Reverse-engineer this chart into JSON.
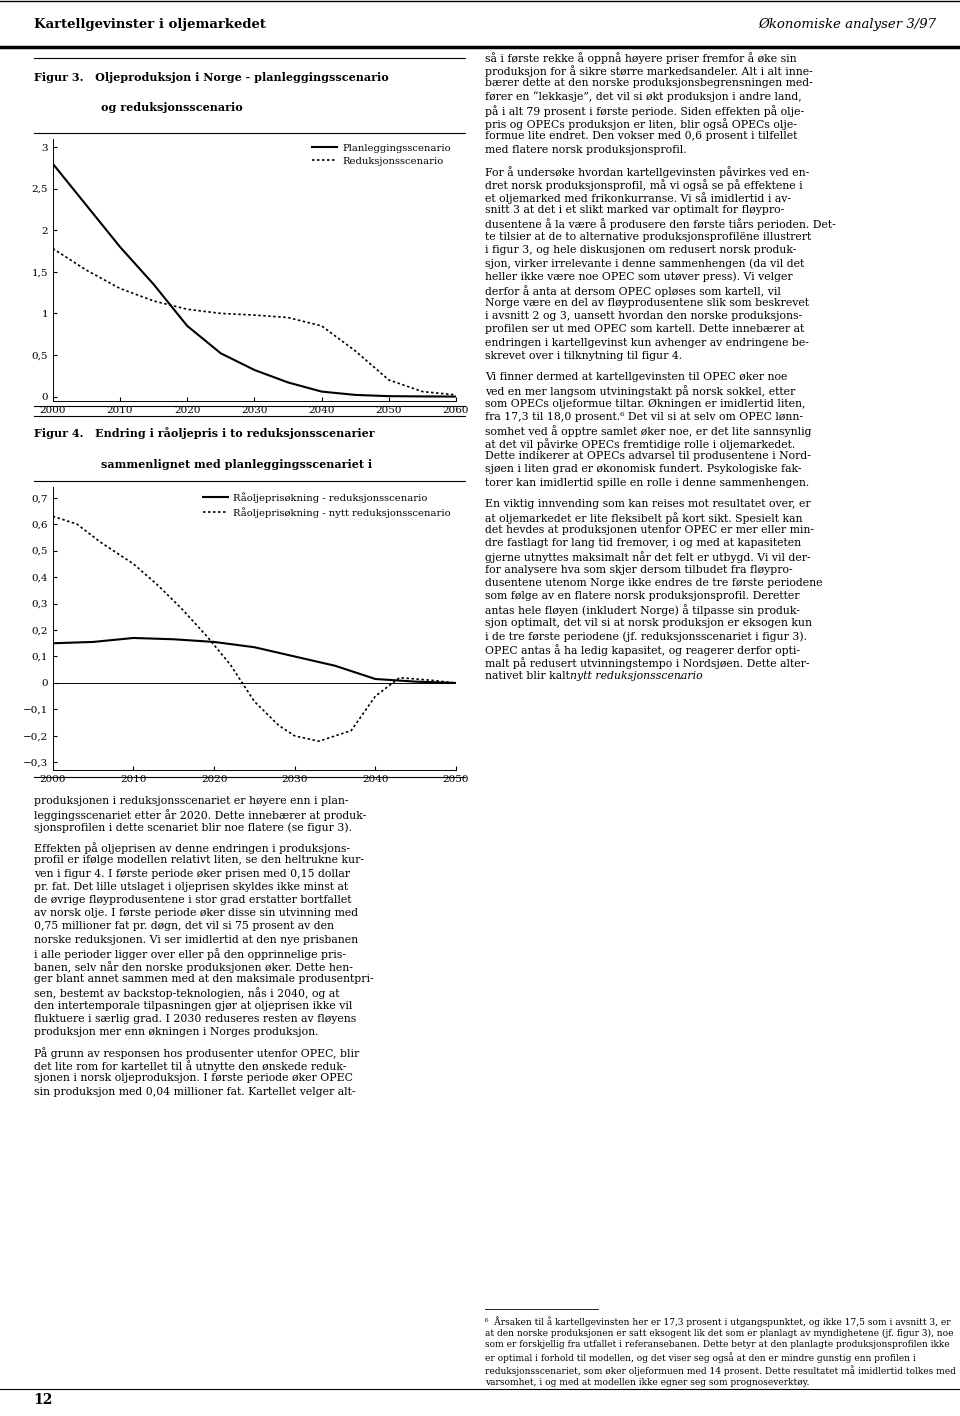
{
  "page_title_left": "Kartellgevinster i oljemarkedet",
  "page_title_right": "Økonomiske analyser 3/97",
  "page_number": "12",
  "fig3_title_line1": "Figur 3.   Oljeproduksjon i Norge - planleggingsscenario",
  "fig3_title_line2": "og reduksjonsscenario",
  "fig3_xlim": [
    2000,
    2060
  ],
  "fig3_ylim": [
    -0.05,
    3.1
  ],
  "fig3_xticks": [
    2000,
    2010,
    2020,
    2030,
    2040,
    2050,
    2060
  ],
  "fig3_yticks": [
    0,
    0.5,
    1,
    1.5,
    2,
    2.5,
    3
  ],
  "fig3_line1_label": "Planleggingsscenario",
  "fig3_line1_color": "#000000",
  "fig3_line1_x": [
    2000,
    2005,
    2010,
    2015,
    2020,
    2025,
    2030,
    2035,
    2040,
    2045,
    2050,
    2055,
    2060
  ],
  "fig3_line1_y": [
    2.8,
    2.3,
    1.8,
    1.35,
    0.85,
    0.52,
    0.32,
    0.17,
    0.06,
    0.02,
    0.005,
    0.002,
    0.0
  ],
  "fig3_line2_label": "Reduksjonsscenario",
  "fig3_line2_color": "#000000",
  "fig3_line2_x": [
    2000,
    2005,
    2010,
    2015,
    2020,
    2025,
    2030,
    2035,
    2040,
    2045,
    2050,
    2055,
    2060
  ],
  "fig3_line2_y": [
    1.78,
    1.52,
    1.3,
    1.15,
    1.05,
    1.0,
    0.98,
    0.95,
    0.85,
    0.55,
    0.2,
    0.06,
    0.02
  ],
  "fig4_title_line1": "Figur 4.   Endring i råoljepris i to reduksjonsscenarier",
  "fig4_title_line2": "sammenlignet med planleggingsscenariet i",
  "fig4_xlim": [
    2000,
    2050
  ],
  "fig4_ylim": [
    -0.33,
    0.74
  ],
  "fig4_xticks": [
    2000,
    2010,
    2020,
    2030,
    2040,
    2050
  ],
  "fig4_yticks": [
    -0.3,
    -0.2,
    -0.1,
    0,
    0.1,
    0.2,
    0.3,
    0.4,
    0.5,
    0.6,
    0.7
  ],
  "fig4_line1_label": "Råoljeprisøkning - reduksjonsscenario",
  "fig4_line1_color": "#000000",
  "fig4_line1_x": [
    2000,
    2005,
    2010,
    2015,
    2020,
    2025,
    2030,
    2035,
    2040,
    2045,
    2050
  ],
  "fig4_line1_y": [
    0.15,
    0.155,
    0.17,
    0.165,
    0.155,
    0.135,
    0.1,
    0.065,
    0.015,
    0.005,
    0.0
  ],
  "fig4_line2_label": "Råoljeprisøkning - nytt reduksjonsscenario",
  "fig4_line2_color": "#000000",
  "fig4_line2_x": [
    2000,
    2003,
    2006,
    2010,
    2013,
    2016,
    2019,
    2022,
    2025,
    2028,
    2030,
    2033,
    2037,
    2040,
    2043,
    2047,
    2050
  ],
  "fig4_line2_y": [
    0.63,
    0.6,
    0.53,
    0.45,
    0.37,
    0.28,
    0.18,
    0.07,
    -0.07,
    -0.16,
    -0.2,
    -0.22,
    -0.18,
    -0.05,
    0.02,
    0.01,
    0.0
  ],
  "left_text_paragraphs": [
    "produksjonen i reduksjonsscenariet er høyere enn i plan-\nleggingsscenariet etter år 2020. Dette innebærer at produk-\nsjonsprofilen i dette scenariet blir noe flatere (se figur 3).",
    "Effekten på oljeprisen av denne endringen i produksjons-\nprofil er ifølge modellen relativt liten, se den heltrukne kur-\nven i figur 4. I første periode øker prisen med 0,15 dollar\npr. fat. Det lille utslaget i oljeprisen skyldes ikke minst at\nde øvrige fløyprodusentene i stor grad erstatter bortfallet\nav norsk olje. I første periode øker disse sin utvinning med\n0,75 millioner fat pr. døgn, det vil si 75 prosent av den\nnorske reduksjonen. Vi ser imidlertid at den nye prisbanen\ni alle perioder ligger over eller på den opprinnelige pris-\nbanen, selv når den norske produksjonen øker. Dette hen-\nger blant annet sammen med at den maksimale produsentpri-\nsen, bestemt av backstop-teknologien, nås i 2040, og at\nden intertemporale tilpasningen gjør at oljeprisen ikke vil\nfluktuere i særlig grad. I 2030 reduseres resten av fløyens\nproduksjon mer enn økningen i Norges produksjon.",
    "På grunn av responsen hos produsenter utenfor OPEC, blir\ndet lite rom for kartellet til å utnytte den ønskede reduk-\nsjonen i norsk oljeproduksjon. I første periode øker OPEC\nsin produksjon med 0,04 millioner fat. Kartellet velger alt-"
  ],
  "right_text_paragraphs": [
    "så i første rekke å oppnå høyere priser fremfor å øke sin\nproduksjon for å sikre større markedsandeler. Alt i alt inne-\nbærer dette at den norske produksjonsbegrensningen med-\nfører en “lekkasje”, det vil si økt produksjon i andre land,\npå i alt 79 prosent i første periode. Siden effekten på olje-\npris og OPECs produksjon er liten, blir også OPECs olje-\nformue lite endret. Den vokser med 0,6 prosent i tilfellet\nmed flatere norsk produksjonsprofil.",
    "For å undersøke hvordan kartellgevinsten påvirkes ved en-\ndret norsk produksjonsprofil, må vi også se på effektene i\net oljemarked med frikonkurranse. Vi så imidlertid i av-\nsnitt 3 at det i et slikt marked var optimalt for fløypro-\ndusentene å la være å produsere den første tiårs perioden. Det-\nte tilsier at de to alternative produksjonsprofilëne illustrert\ni figur 3, og hele diskusjonen om redusert norsk produk-\nsjon, virker irrelevante i denne sammenhengen (da vil det\nheller ikke være noe OPEC som utøver press). Vi velger\nderfor å anta at dersom OPEC opløses som kartell, vil\nNorge være en del av fløyprodusentene slik som beskrevet\ni avsnitt 2 og 3, uansett hvordan den norske produksjons-\nprofilen ser ut med OPEC som kartell. Dette innebærer at\nendringen i kartellgevinst kun avhenger av endringene be-\nskrevet over i tilknytning til figur 4.",
    "Vi finner dermed at kartellgevinsten til OPEC øker noe\nved en mer langsom utviningstakt på norsk sokkel, etter\nsom OPECs oljeformue tiltar. Økningen er imidlertid liten,\nfra 17,3 til 18,0 prosent.⁶ Det vil si at selv om OPEC lønn-\nsomhet ved å opptre samlet øker noe, er det lite sannsynlig\nat det vil påvirke OPECs fremtidige rolle i oljemarkedet.\nDette indikerer at OPECs advarsel til produsentene i Nord-\nsjøen i liten grad er økonomisk fundert. Psykologiske fak-\ntorer kan imidlertid spille en rolle i denne sammenhengen.",
    "En viktig innvending som kan reises mot resultatet over, er\nat oljemarkedet er lite fleksibelt på kort sikt. Spesielt kan\ndet hevdes at produksjonen utenfor OPEC er mer eller min-\ndre fastlagt for lang tid fremover, i og med at kapasiteten\ngjerne utnyttes maksimalt når det felt er utbygd. Vi vil der-\nfor analysere hva som skjer dersom tilbudet fra fløypro-\ndusentene utenom Norge ikke endres de tre første periodene\nsom følge av en flatere norsk produksjonsprofil. Deretter\nantas hele fløyen (inkludert Norge) å tilpasse sin produk-\nsjon optimalt, det vil si at norsk produksjon er eksogen kun\ni de tre første periodene (jf. reduksjonsscenariet i figur 3).\nOPEC antas å ha ledig kapasitet, og reagerer derfor opti-\nmalt på redusert utvinningstempo i Nordsjøen. Dette alter-\nnativet blir kalt nytt reduksjonsscenario."
  ],
  "footnote_num": "⁶",
  "footnote_text": "Årsaken til å kartellgevinsten her er 17,3 prosent i utgangspunktet, og ikke 17,5 som i avsnitt 3, er at den norske produksjonen er satt eksogent lik det som er planlagt av myndighetene (jf. figur 3), noe som er forskjellig fra utfallet i referansebanen. Dette betyr at den planlagte produksjonsprofilen ikke er optimal i forhold til modellen, og det viser seg også at den er mindre gunstig enn profilen i reduksjonsscenariet, som øker oljeformuen med 14 prosent. Dette resultatet må imidlertid tolkes med varsomhet, i og med at modellen ikke egner seg som prognoseverktøy.",
  "footnote_italic_word": "nytt reduksjonsscenario"
}
